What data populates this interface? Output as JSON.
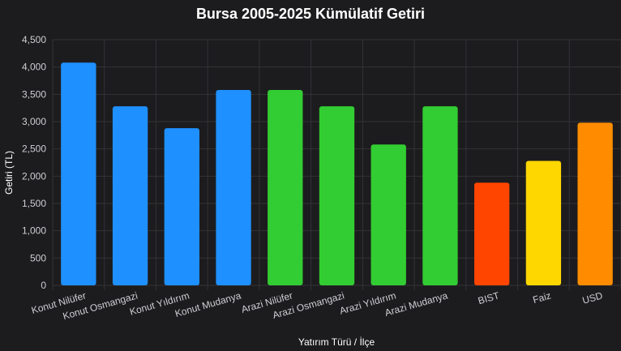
{
  "chart_data": {
    "type": "bar",
    "title": "Bursa 2005-2025 Kümülatif Getiri",
    "xlabel": "Yatırım Türü / İlçe",
    "ylabel": "Getiri (TL)",
    "ylim": [
      0,
      4500
    ],
    "yticks": [
      0,
      500,
      1000,
      1500,
      2000,
      2500,
      3000,
      3500,
      4000,
      4500
    ],
    "ytick_labels": [
      "0",
      "500",
      "1,000",
      "1,500",
      "2,000",
      "2,500",
      "3,000",
      "3,500",
      "4,000",
      "4,500"
    ],
    "grid": true,
    "legend": "none",
    "categories": [
      "Konut Nilüfer",
      "Konut Osmangazi",
      "Konut Yıldırım",
      "Konut Mudanya",
      "Arazi Nilüfer",
      "Arazi Osmangazi",
      "Arazi Yıldırım",
      "Arazi Mudanya",
      "BIST",
      "Faiz",
      "USD"
    ],
    "values": [
      4080,
      3280,
      2880,
      3580,
      3580,
      3280,
      2580,
      3280,
      1880,
      2280,
      2980
    ],
    "colors": [
      "#1e90ff",
      "#1e90ff",
      "#1e90ff",
      "#1e90ff",
      "#32cd32",
      "#32cd32",
      "#32cd32",
      "#32cd32",
      "#ff4500",
      "#ffd700",
      "#ff8c00"
    ]
  }
}
